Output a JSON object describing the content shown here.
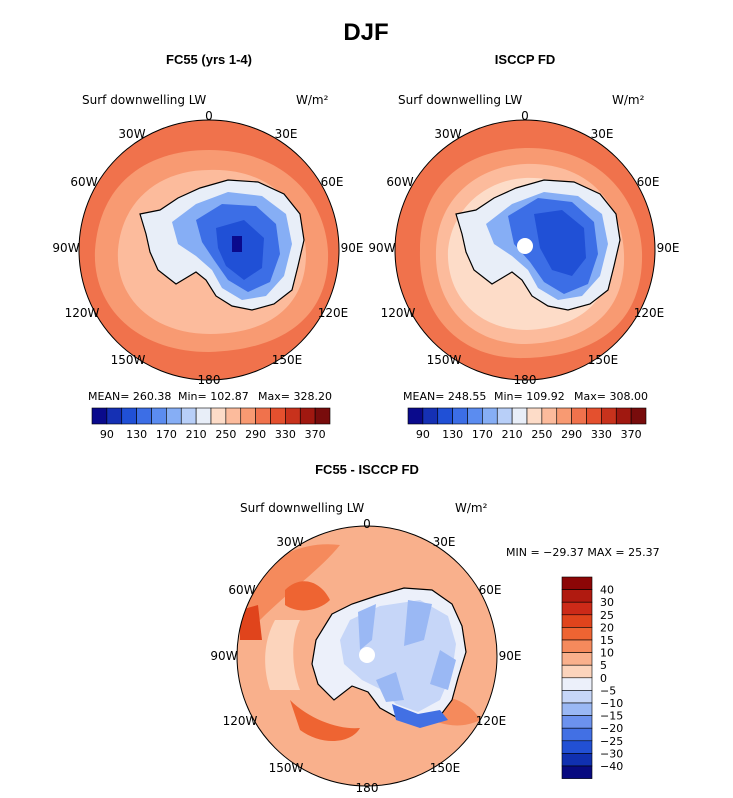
{
  "figure": {
    "title": "DJF"
  },
  "chart_data": [
    {
      "type": "heatmap",
      "projection": "south-polar-stereographic",
      "title": "FC55 (yrs 1-4)",
      "field_label": "Surf downwelling LW",
      "units": "W/m²",
      "lon_labels": [
        "0",
        "30E",
        "60E",
        "90E",
        "120E",
        "150E",
        "180",
        "150W",
        "120W",
        "90W",
        "60W",
        "30W"
      ],
      "stats": {
        "mean": "MEAN= 260.38",
        "min": "Min= 102.87",
        "max": "Max= 328.20"
      },
      "colorbar_ticks": [
        "90",
        "130",
        "170",
        "210",
        "250",
        "290",
        "330",
        "370"
      ],
      "colorbar_levels": [
        90,
        110,
        130,
        150,
        170,
        190,
        210,
        230,
        250,
        270,
        290,
        310,
        330,
        350,
        370
      ],
      "approx_values": {
        "ocean_far": 310,
        "ocean_mid": 290,
        "coast": 260,
        "interior": 130,
        "center_min": 103
      }
    },
    {
      "type": "heatmap",
      "projection": "south-polar-stereographic",
      "title": "ISCCP FD",
      "field_label": "Surf downwelling LW",
      "units": "W/m²",
      "lon_labels": [
        "0",
        "30E",
        "60E",
        "90E",
        "120E",
        "150E",
        "180",
        "150W",
        "120W",
        "90W",
        "60W",
        "30W"
      ],
      "stats": {
        "mean": "MEAN= 248.55",
        "min": "Min= 109.92",
        "max": "Max= 308.00"
      },
      "colorbar_ticks": [
        "90",
        "130",
        "170",
        "210",
        "250",
        "290",
        "330",
        "370"
      ],
      "colorbar_levels": [
        90,
        110,
        130,
        150,
        170,
        190,
        210,
        230,
        250,
        270,
        290,
        310,
        330,
        350,
        370
      ],
      "approx_values": {
        "ocean_far": 300,
        "ocean_mid": 270,
        "coast": 250,
        "interior": 140,
        "pole_missing": true
      }
    },
    {
      "type": "heatmap",
      "projection": "south-polar-stereographic",
      "title": "FC55 - ISCCP FD",
      "field_label": "Surf downwelling LW",
      "units": "W/m²",
      "lon_labels": [
        "0",
        "30E",
        "60E",
        "90E",
        "120E",
        "150E",
        "180",
        "150W",
        "120W",
        "90W",
        "60W",
        "30W"
      ],
      "stats_line": "MIN = −29.37 MAX =  25.37",
      "min": -29.37,
      "max": 25.37,
      "colorbar_ticks": [
        "40",
        "30",
        "25",
        "20",
        "15",
        "10",
        "5",
        "0",
        "−5",
        "−10",
        "−15",
        "−20",
        "−25",
        "−30",
        "−40"
      ],
      "approx_values": {
        "ocean": 10,
        "interior": -5,
        "pole_missing": true
      }
    }
  ],
  "colors": {
    "abs_scale": [
      "#0a0a8c",
      "#1530b4",
      "#2050d6",
      "#3c6ee6",
      "#5b8cf0",
      "#86aef5",
      "#b8cff8",
      "#e8eef8",
      "#fddcc8",
      "#fcbb9c",
      "#f89a72",
      "#f0724c",
      "#e4502e",
      "#c8321c",
      "#a01810",
      "#780c0c"
    ],
    "diff_scale": [
      "#8c0606",
      "#b01a10",
      "#cc2a18",
      "#e0441c",
      "#ee6432",
      "#f58a5c",
      "#f9b08c",
      "#fcd4bc",
      "#ecf0fa",
      "#c6d6f8",
      "#9ab8f4",
      "#6c92ee",
      "#4270e4",
      "#2250d4",
      "#1030b0",
      "#080a80"
    ]
  }
}
